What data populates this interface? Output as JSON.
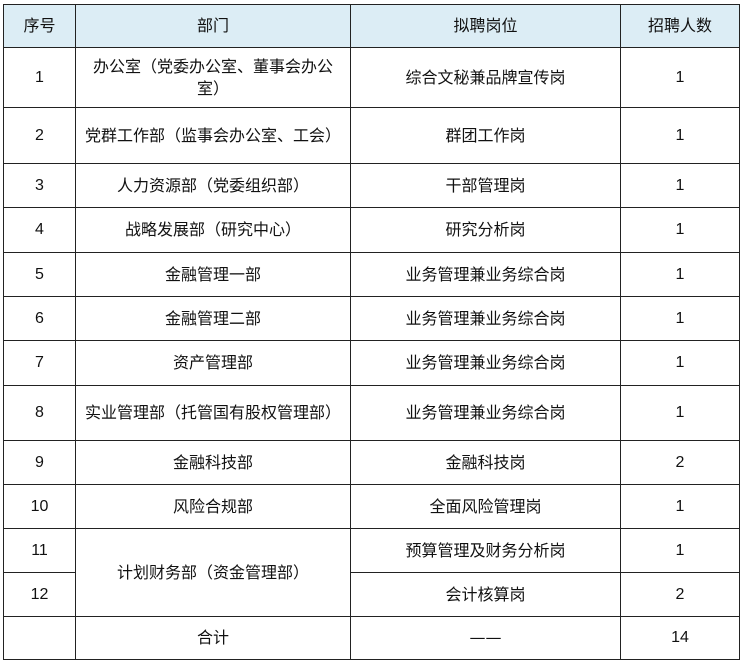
{
  "header": {
    "no": "序号",
    "dept": "部门",
    "post": "拟聘岗位",
    "count": "招聘人数"
  },
  "rows": [
    {
      "no": "1",
      "dept": "办公室（党委办公室、董事会办公室）",
      "post": "综合文秘兼品牌宣传岗",
      "count": "1"
    },
    {
      "no": "2",
      "dept": "党群工作部（监事会办公室、工会）",
      "post": "群团工作岗",
      "count": "1"
    },
    {
      "no": "3",
      "dept": "人力资源部（党委组织部）",
      "post": "干部管理岗",
      "count": "1"
    },
    {
      "no": "4",
      "dept": "战略发展部（研究中心）",
      "post": "研究分析岗",
      "count": "1"
    },
    {
      "no": "5",
      "dept": "金融管理一部",
      "post": "业务管理兼业务综合岗",
      "count": "1"
    },
    {
      "no": "6",
      "dept": "金融管理二部",
      "post": "业务管理兼业务综合岗",
      "count": "1"
    },
    {
      "no": "7",
      "dept": "资产管理部",
      "post": "业务管理兼业务综合岗",
      "count": "1"
    },
    {
      "no": "8",
      "dept": "实业管理部（托管国有股权管理部）",
      "post": "业务管理兼业务综合岗",
      "count": "1"
    },
    {
      "no": "9",
      "dept": "金融科技部",
      "post": "金融科技岗",
      "count": "2"
    },
    {
      "no": "10",
      "dept": "风险合规部",
      "post": "全面风险管理岗",
      "count": "1"
    },
    {
      "no": "11",
      "dept": "计划财务部（资金管理部）",
      "post": "预算管理及财务分析岗",
      "count": "1"
    },
    {
      "no": "12",
      "post": "会计核算岗",
      "count": "2"
    }
  ],
  "total": {
    "no": "",
    "label": "合计",
    "post": "——",
    "count": "14"
  },
  "colors": {
    "header_bg": "#dcedf5",
    "border": "#222222"
  }
}
